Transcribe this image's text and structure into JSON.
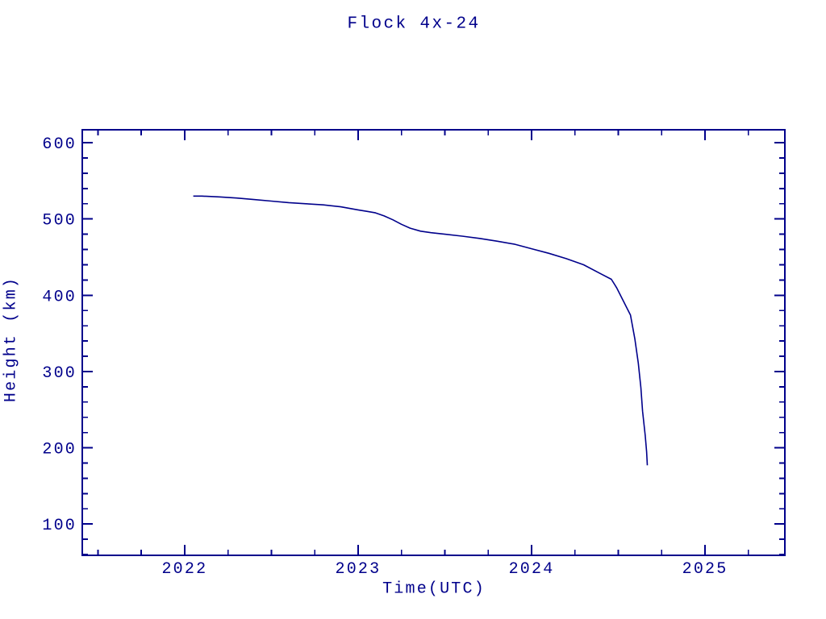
{
  "title": "Flock 4x-24",
  "colors": {
    "accent": "#00008B",
    "background": "#FFFFFF"
  },
  "chart_data": {
    "type": "line",
    "title": "Flock 4x-24",
    "xlabel": "Time(UTC)",
    "ylabel": "Height (km)",
    "xlim": [
      2021.41,
      2025.46
    ],
    "ylim": [
      59,
      617
    ],
    "x_major_ticks": [
      2022,
      2023,
      2024,
      2025
    ],
    "x_minor_interval": 0.25,
    "y_major_ticks": [
      100,
      200,
      300,
      400,
      500,
      600
    ],
    "y_minor_interval": 20,
    "grid": false,
    "legend_position": "none",
    "line_color": "#00008B",
    "series": [
      {
        "name": "Flock 4x-24 height",
        "x": [
          2022.05,
          2022.1,
          2022.2,
          2022.3,
          2022.4,
          2022.5,
          2022.6,
          2022.7,
          2022.8,
          2022.9,
          2023.0,
          2023.05,
          2023.1,
          2023.15,
          2023.2,
          2023.25,
          2023.3,
          2023.36,
          2023.42,
          2023.5,
          2023.6,
          2023.7,
          2023.8,
          2023.9,
          2024.0,
          2024.1,
          2024.2,
          2024.3,
          2024.4,
          2024.46,
          2024.49,
          2024.53,
          2024.57,
          2024.595,
          2024.615,
          2024.63,
          2024.64,
          2024.655,
          2024.663,
          2024.667
        ],
        "y": [
          530,
          530,
          529,
          527.5,
          525.5,
          523.5,
          521.5,
          520,
          518.5,
          516,
          512,
          510,
          508,
          504,
          499,
          493,
          488,
          484,
          482,
          480,
          477.5,
          474.5,
          471,
          467,
          461,
          455,
          448,
          440,
          428,
          421,
          410,
          392,
          374,
          343,
          311,
          279,
          248,
          216,
          195,
          177
        ]
      }
    ]
  }
}
